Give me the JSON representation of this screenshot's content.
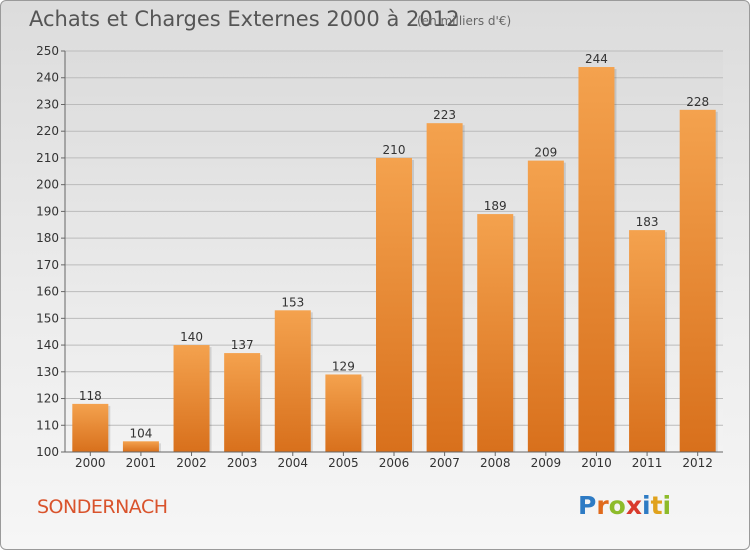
{
  "header": {
    "title": "Achats et Charges Externes 2000 à 2012",
    "unit_note": "(en milliers d'€)"
  },
  "footer": {
    "location": "SONDERNACH",
    "logo_text": "Proxiti",
    "logo_letters": [
      {
        "char": "P",
        "color": "#2e7bc4"
      },
      {
        "char": "r",
        "color": "#e06a1c"
      },
      {
        "char": "o",
        "color": "#8dbb2a"
      },
      {
        "char": "x",
        "color": "#d93a2b"
      },
      {
        "char": "i",
        "color": "#2e7bc4"
      },
      {
        "char": "t",
        "color": "#e0a21c"
      },
      {
        "char": "i",
        "color": "#8dbb2a"
      }
    ]
  },
  "colors": {
    "bar_light": "#f4a24e",
    "bar_dark": "#d8701c",
    "grid": "#bbbbbb",
    "axis_text": "#333333"
  },
  "chart_data": {
    "type": "bar",
    "title": "Achats et Charges Externes 2000 à 2012",
    "subtitle": "(en milliers d'€)",
    "categories": [
      "2000",
      "2001",
      "2002",
      "2003",
      "2004",
      "2005",
      "2006",
      "2007",
      "2008",
      "2009",
      "2010",
      "2011",
      "2012"
    ],
    "values": [
      118,
      104,
      140,
      137,
      153,
      129,
      210,
      223,
      189,
      209,
      244,
      183,
      228
    ],
    "ylim": [
      100,
      250
    ],
    "yticks": [
      100,
      110,
      120,
      130,
      140,
      150,
      160,
      170,
      180,
      190,
      200,
      210,
      220,
      230,
      240,
      250
    ],
    "grid": true,
    "legend": "none"
  }
}
